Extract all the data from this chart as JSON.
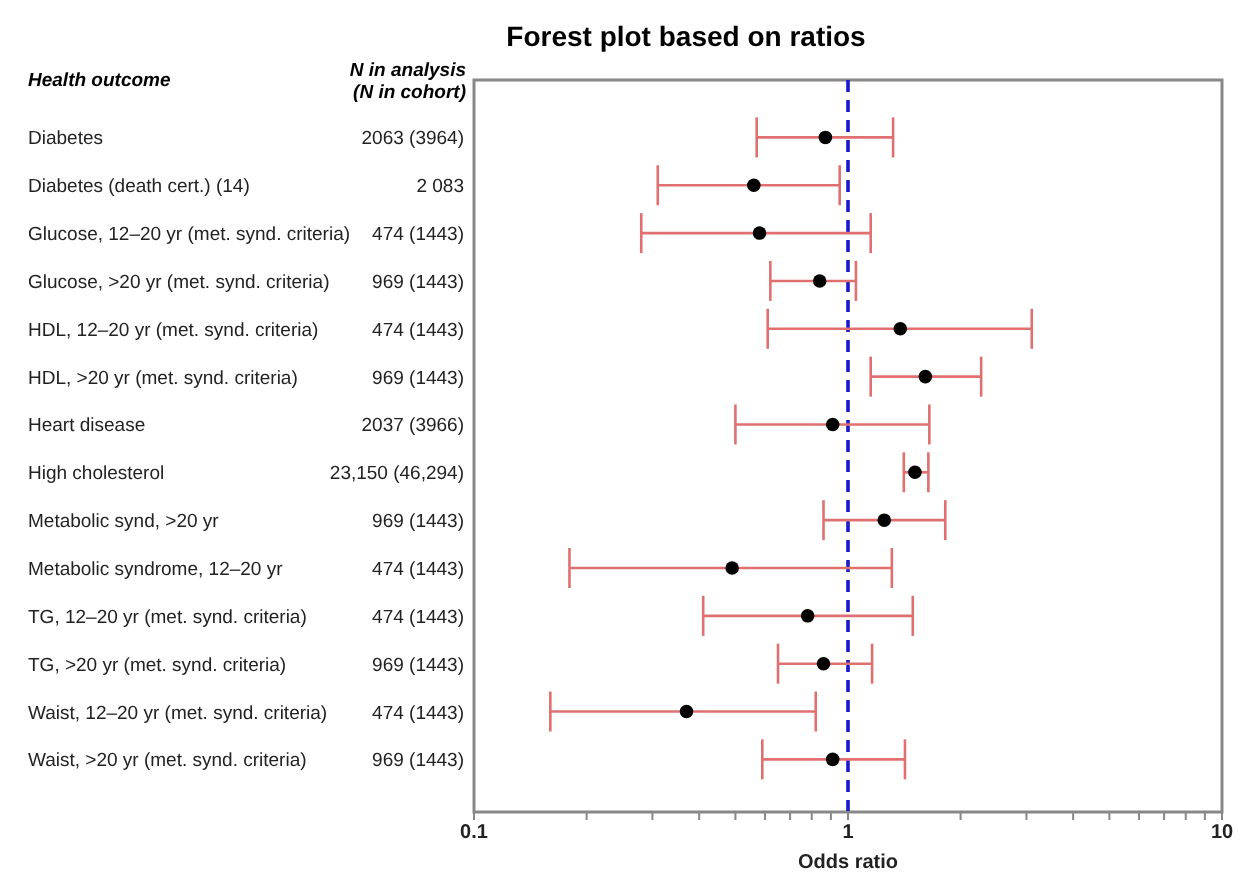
{
  "chart_data": {
    "type": "scatter",
    "orientation": "horizontal",
    "title": "Forest plot based on ratios",
    "xlabel": "Odds ratio",
    "ylabel": "Health outcome",
    "categories": [
      "Diabetes",
      "Diabetes (death cert.) (14)",
      "Glucose, 12–20 yr (met. synd. criteria)",
      "Glucose, >20 yr (met. synd. criteria)",
      "HDL, 12–20 yr (met. synd. criteria)",
      "HDL, >20 yr (met. synd. criteria)",
      "Heart disease",
      "High cholesterol",
      "Metabolic synd, >20 yr",
      "Metabolic syndrome,  12–20 yr",
      "TG, 12–20 yr (met. synd. criteria)",
      "TG, >20 yr (met. synd. criteria)",
      "Waist, 12–20 yr (met. synd. criteria)",
      "Waist, >20 yr (met. synd. criteria)"
    ],
    "series": [
      {
        "color": "#000000",
        "values": [
          0.87,
          0.56,
          0.58,
          0.84,
          1.38,
          1.61,
          0.91,
          1.51,
          1.25,
          0.49,
          0.78,
          0.86,
          0.37,
          0.91
        ],
        "errors": [
          [
            0.57,
            1.32
          ],
          [
            0.31,
            0.95
          ],
          [
            0.28,
            1.15
          ],
          [
            0.62,
            1.05
          ],
          [
            0.61,
            3.1
          ],
          [
            1.15,
            2.27
          ],
          [
            0.5,
            1.65
          ],
          [
            1.41,
            1.64
          ],
          [
            0.86,
            1.82
          ],
          [
            0.18,
            1.31
          ],
          [
            0.41,
            1.49
          ],
          [
            0.65,
            1.16
          ],
          [
            0.16,
            0.82
          ],
          [
            0.59,
            1.42
          ]
        ]
      }
    ],
    "annotations": [
      "N in analysis",
      "(N in cohort)",
      "2063 (3964)",
      "2 083",
      "474 (1443)",
      "969 (1443)",
      "474 (1443)",
      "969 (1443)",
      "2037 (3966)",
      "23,150 (46,294)",
      "969 (1443)",
      "474 (1443)",
      "474 (1443)",
      "969 (1443)",
      "474 (1443)",
      "969 (1443)"
    ],
    "log": "x",
    "xlim": [
      0.1,
      10
    ],
    "xticks": [
      0.1,
      {
        "value": 0.2,
        "label": null
      },
      {
        "value": 0.3,
        "label": null
      },
      {
        "value": 0.4,
        "label": null
      },
      {
        "value": 0.5,
        "label": null
      },
      {
        "value": 0.6,
        "label": null
      },
      {
        "value": 0.7,
        "label": null
      },
      {
        "value": 0.8,
        "label": null
      },
      {
        "value": 0.9,
        "label": null
      },
      1,
      {
        "value": 2,
        "label": null
      },
      {
        "value": 3,
        "label": null
      },
      {
        "value": 4,
        "label": null
      },
      {
        "value": 5,
        "label": null
      },
      {
        "value": 6,
        "label": null
      },
      {
        "value": 7,
        "label": null
      },
      {
        "value": 8,
        "label": null
      },
      {
        "value": 9,
        "label": null
      },
      10
    ],
    "ref_lines": [
      {
        "axis": "x",
        "value": 1,
        "color": "#1a1acc",
        "line_style": "dashed"
      }
    ],
    "marker": "circle"
  }
}
